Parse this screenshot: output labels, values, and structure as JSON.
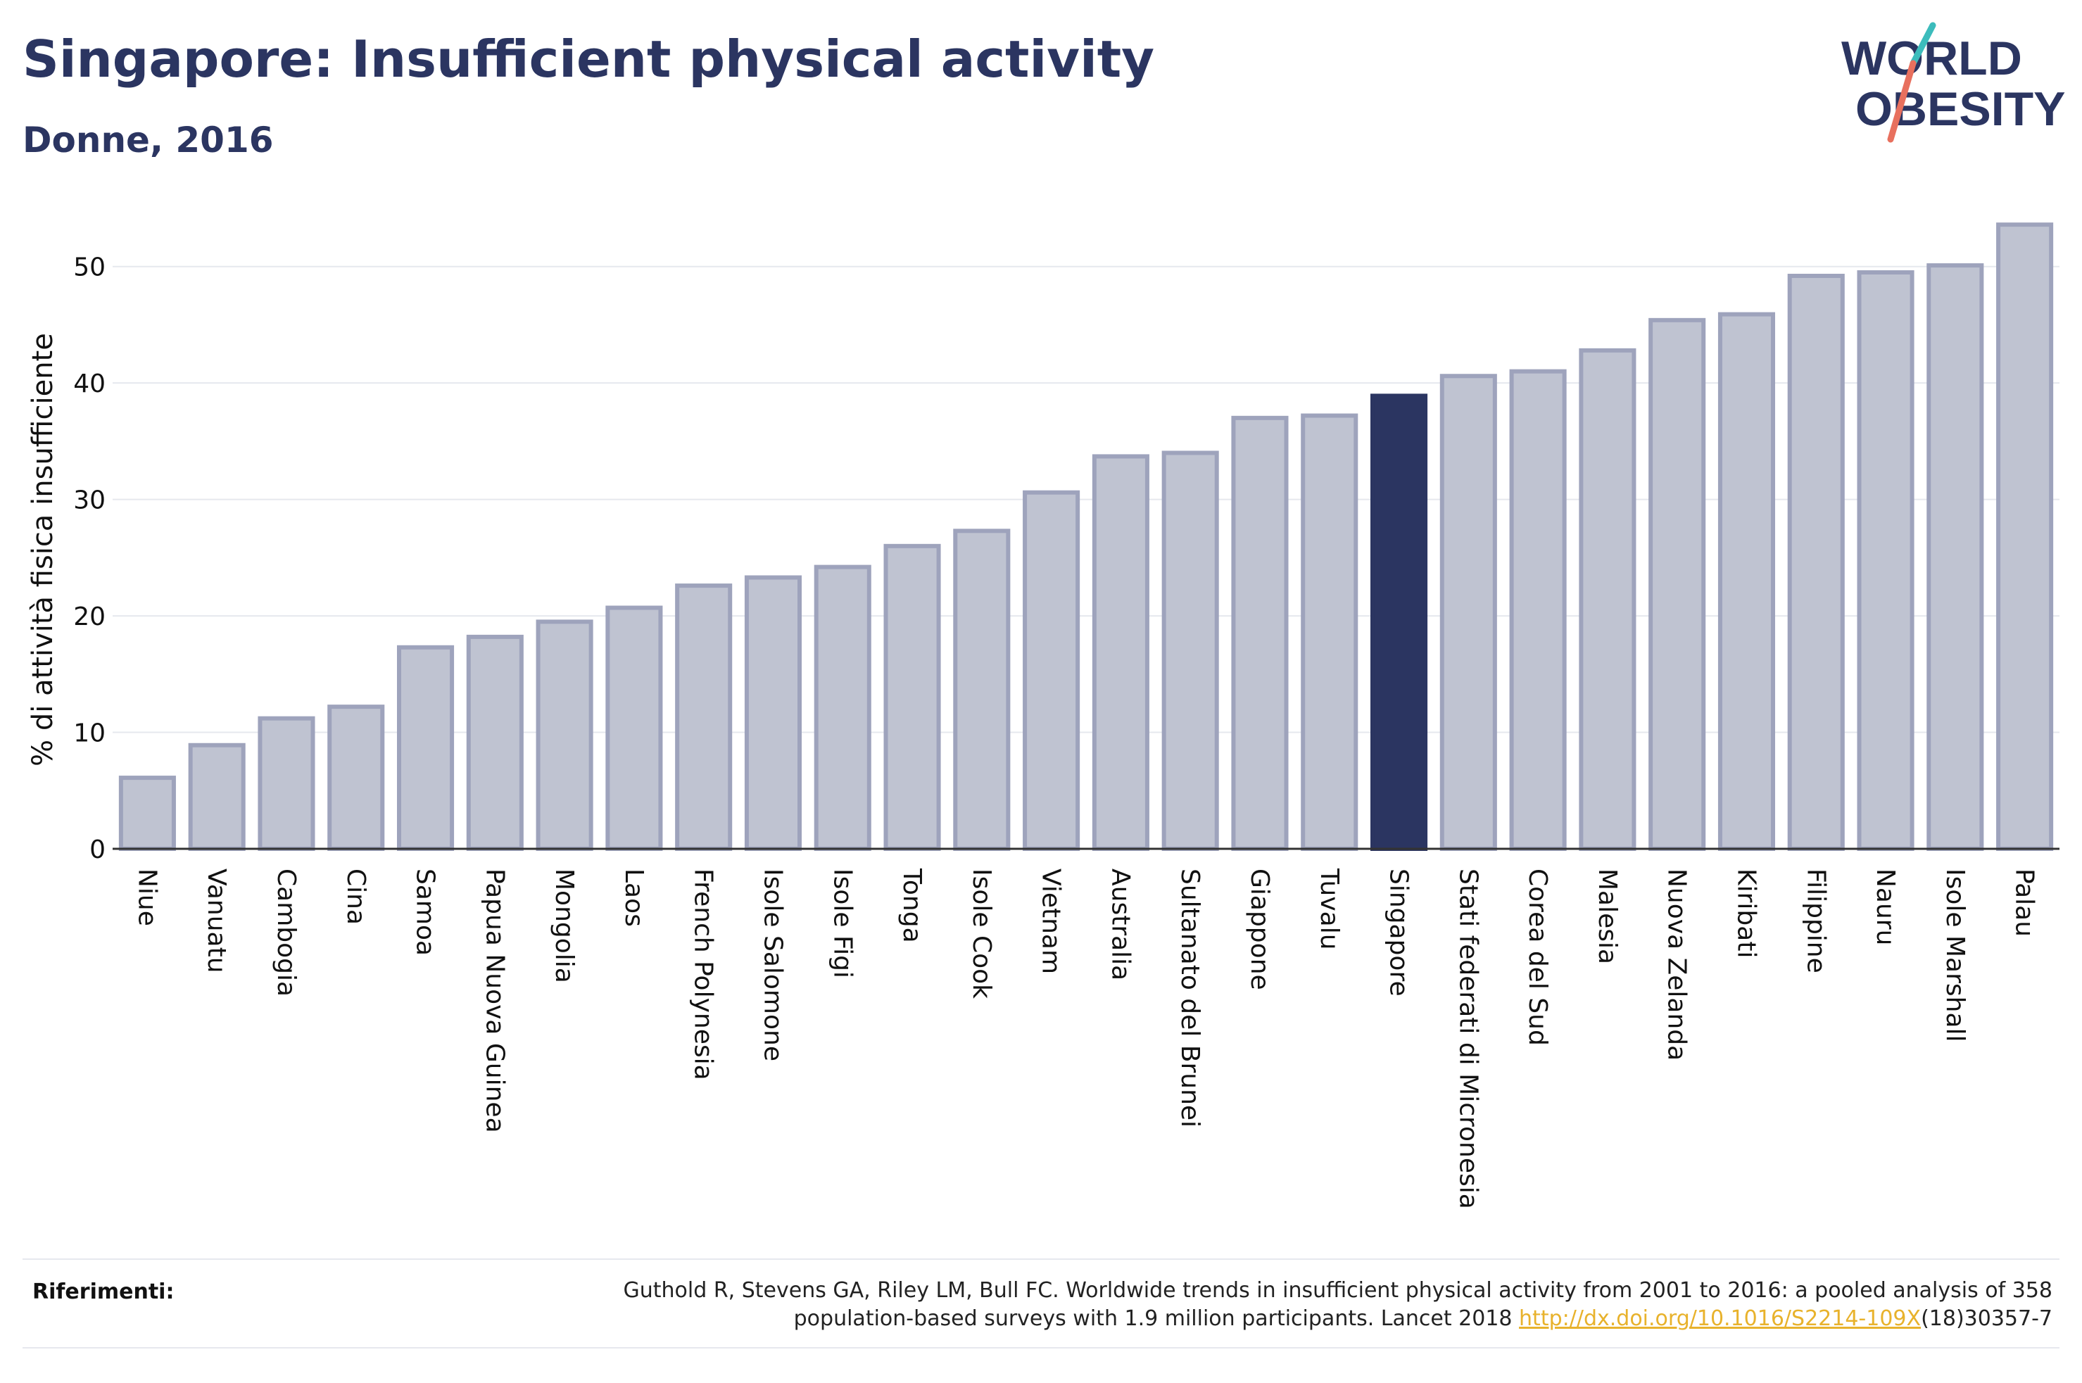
{
  "title": "Singapore: Insufficient physical activity",
  "subtitle": "Donne, 2016",
  "logo": {
    "line1": "WORLD",
    "line2": "OBESITY"
  },
  "references": {
    "label": "Riferimenti:",
    "text_line1": "Guthold R, Stevens GA, Riley LM, Bull FC. Worldwide trends in insufficient physical activity from 2001 to 2016: a pooled analysis of 358",
    "text_line2_before": "population-based surveys with 1.9 million participants. Lancet 2018 ",
    "link": "http://dx.doi.org/10.1016/S2214-109X",
    "text_line2_after": "(18)30357-7"
  },
  "colors": {
    "bar": "#bfc3d1",
    "bar_border": "#9ea3bc",
    "highlight": "#2b3561",
    "title": "#2b3561",
    "link": "#e8b22c"
  },
  "chart_data": {
    "type": "bar",
    "ylabel": "% di attività fisica insufficiente",
    "xlabel": "",
    "ylim": [
      0,
      55
    ],
    "yticks": [
      0,
      10,
      20,
      30,
      40,
      50
    ],
    "grid": true,
    "highlight": "Singapore",
    "categories": [
      "Niue",
      "Vanuatu",
      "Cambogia",
      "Cina",
      "Samoa",
      "Papua Nuova Guinea",
      "Mongolia",
      "Laos",
      "French Polynesia",
      "Isole Salomone",
      "Isole Figi",
      "Tonga",
      "Isole Cook",
      "Vietnam",
      "Australia",
      "Sultanato del Brunei",
      "Giappone",
      "Tuvalu",
      "Singapore",
      "Stati federati di Micronesia",
      "Corea del Sud",
      "Malesia",
      "Nuova Zelanda",
      "Kiribati",
      "Filippine",
      "Nauru",
      "Isole Marshall",
      "Palau"
    ],
    "values": [
      6.1,
      8.9,
      11.2,
      12.2,
      17.3,
      18.2,
      19.5,
      20.7,
      22.6,
      23.3,
      24.2,
      26.0,
      27.3,
      30.6,
      33.7,
      34.0,
      37.0,
      37.2,
      38.9,
      40.6,
      41.0,
      42.8,
      45.4,
      45.9,
      49.2,
      49.5,
      50.1,
      53.6
    ]
  }
}
